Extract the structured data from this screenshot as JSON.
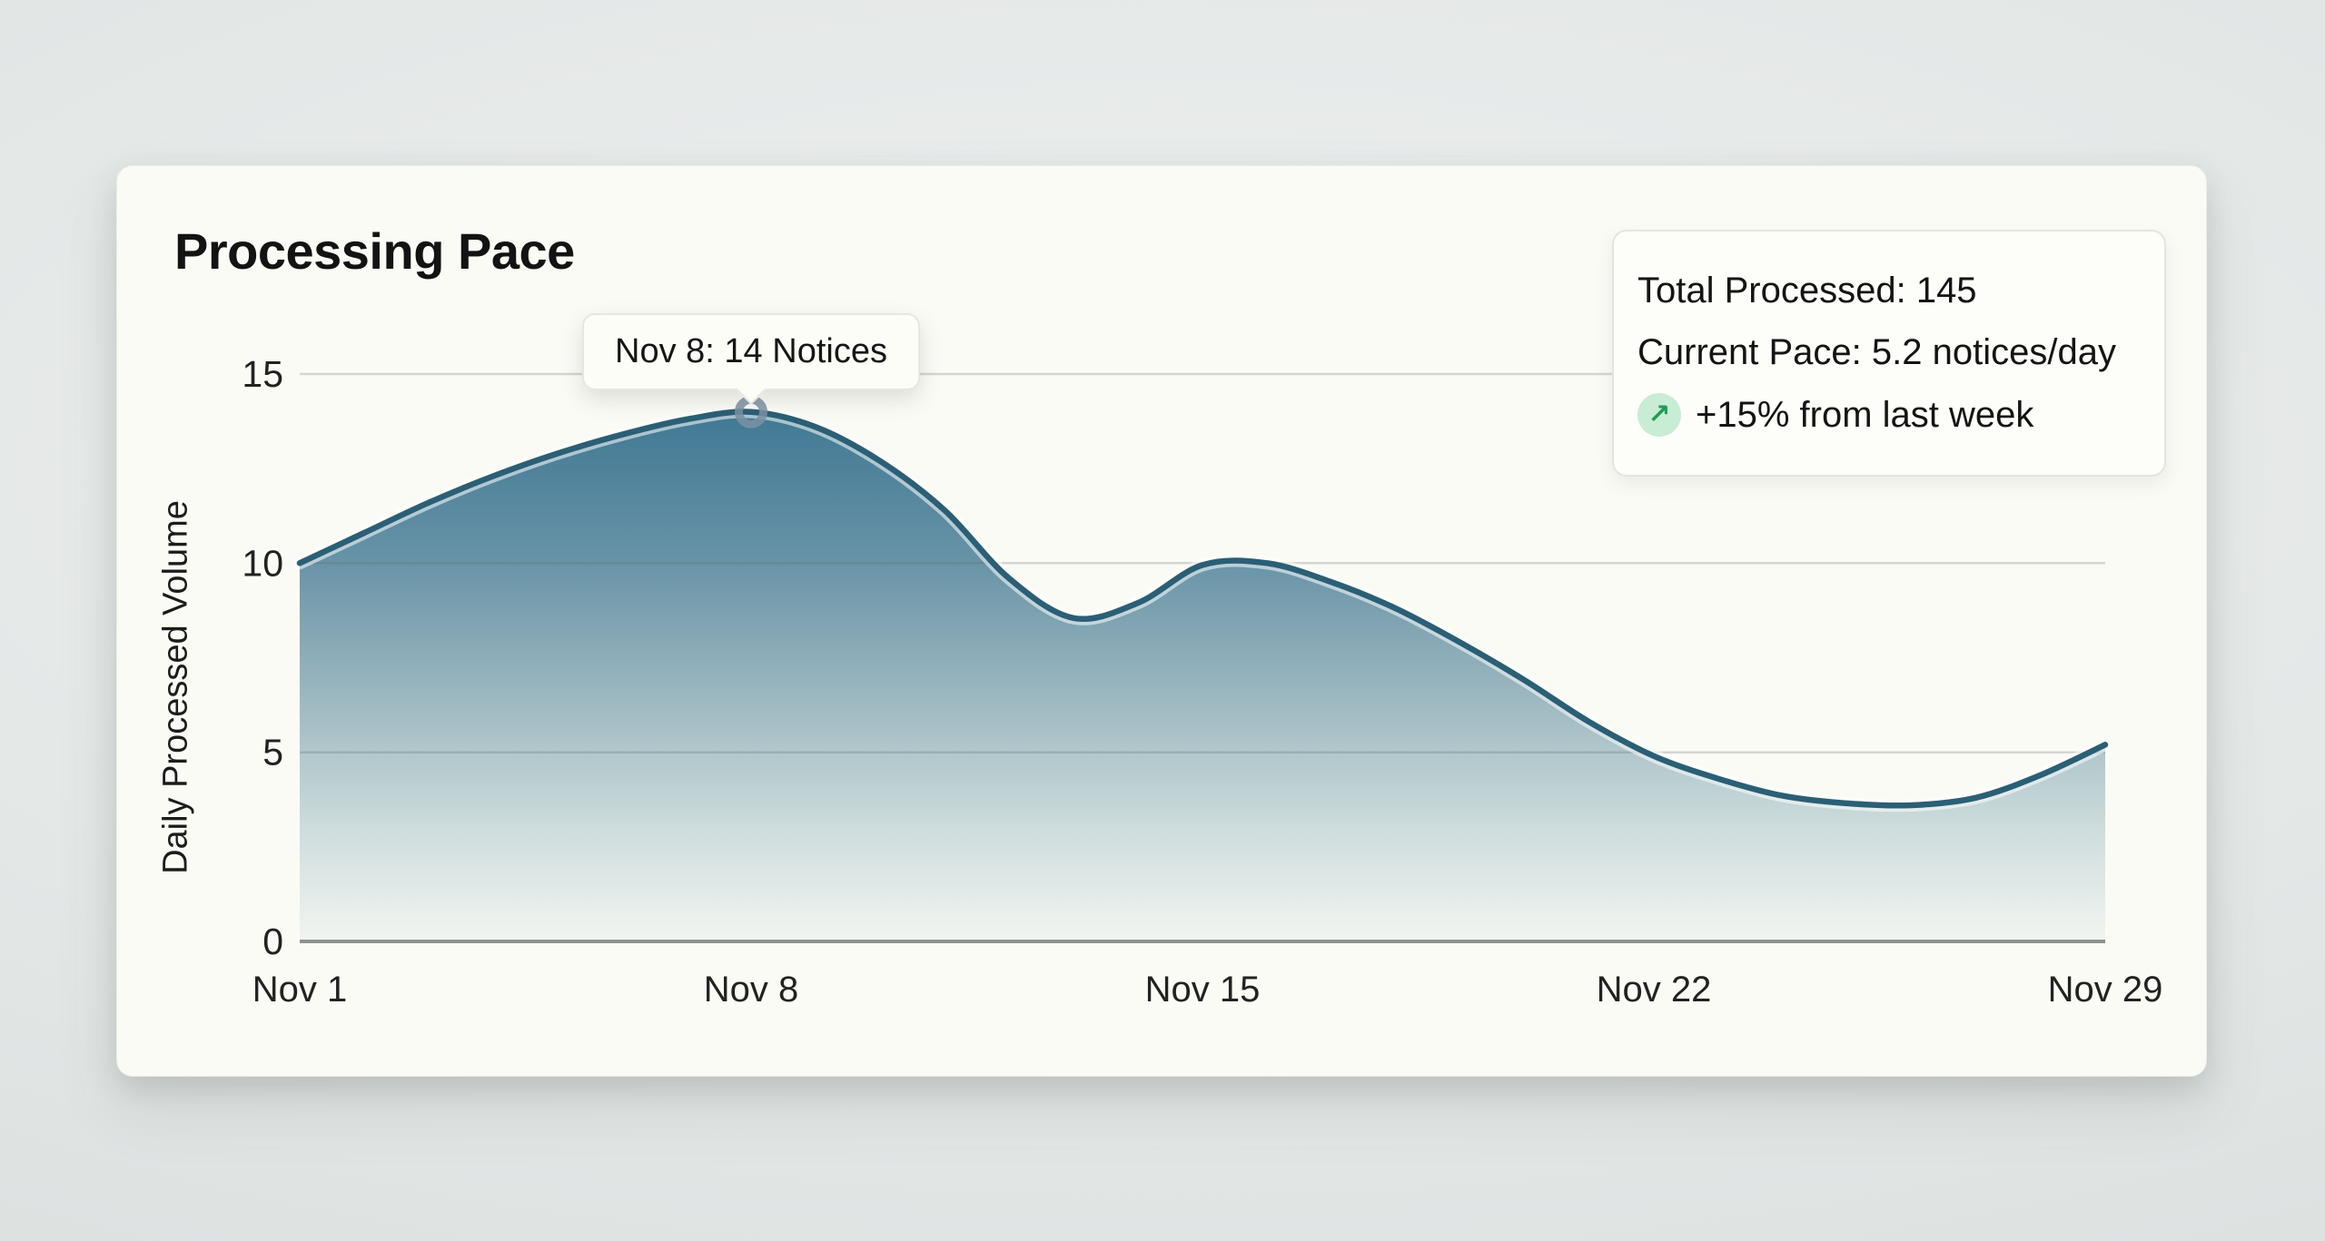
{
  "page": {
    "background_color": "#e3e7e6"
  },
  "card": {
    "title": "Processing Pace",
    "background_color": "#fbfbf6"
  },
  "tooltip": {
    "label": "Nov 8: 14 Notices"
  },
  "stats_panel": {
    "total_label": "Total Processed: 145",
    "pace_label": "Current Pace: 5.2 notices/day",
    "change_label": "+15% from last week",
    "change_icon": {
      "name": "trend-up-icon",
      "glyph": "↗",
      "color": "#1f9d53",
      "background": "#c8ecd4"
    }
  },
  "chart_data": {
    "type": "area",
    "title": "Processing Pace",
    "xlabel": "",
    "ylabel": "Daily Processed Volume",
    "ylim": [
      0,
      15
    ],
    "y_ticks": [
      0,
      5,
      10,
      15
    ],
    "xlim": [
      1,
      29
    ],
    "x_ticks": [
      {
        "day": 1,
        "label": "Nov 1"
      },
      {
        "day": 8,
        "label": "Nov 8"
      },
      {
        "day": 15,
        "label": "Nov 15"
      },
      {
        "day": 22,
        "label": "Nov 22"
      },
      {
        "day": 29,
        "label": "Nov 29"
      }
    ],
    "x": [
      1,
      2,
      3,
      4,
      5,
      6,
      7,
      8,
      9,
      10,
      11,
      12,
      13,
      14,
      15,
      16,
      17,
      18,
      19,
      20,
      21,
      22,
      23,
      24,
      25,
      26,
      27,
      28,
      29
    ],
    "values": [
      10,
      10.8,
      11.6,
      12.3,
      12.9,
      13.4,
      13.8,
      14,
      13.6,
      12.7,
      11.4,
      9.6,
      8.55,
      8.95,
      9.95,
      10,
      9.5,
      8.8,
      7.9,
      6.9,
      5.8,
      4.9,
      4.3,
      3.85,
      3.65,
      3.6,
      3.8,
      4.4,
      5.2
    ],
    "annotated_point": {
      "day": 8,
      "value": 14,
      "label": "Nov 8: 14 Notices"
    },
    "grid": true,
    "legend": false,
    "colors": {
      "line": "#2b5f75",
      "line_glow": "rgba(255,255,255,0.55)",
      "fill_gradient": [
        {
          "offset": 0.0,
          "color": "#3b7591"
        },
        {
          "offset": 0.08,
          "color": "#427a94"
        },
        {
          "offset": 0.32,
          "color": "#6692a6"
        },
        {
          "offset": 0.56,
          "color": "#9ab6bf"
        },
        {
          "offset": 0.8,
          "color": "#cddcdc"
        },
        {
          "offset": 1.0,
          "color": "#f2f5f1"
        }
      ],
      "grid_line": "rgba(95,102,100,0.25)",
      "axis_line": "#8f938f",
      "marker_ring": "rgba(124,146,163,0.85)"
    }
  }
}
